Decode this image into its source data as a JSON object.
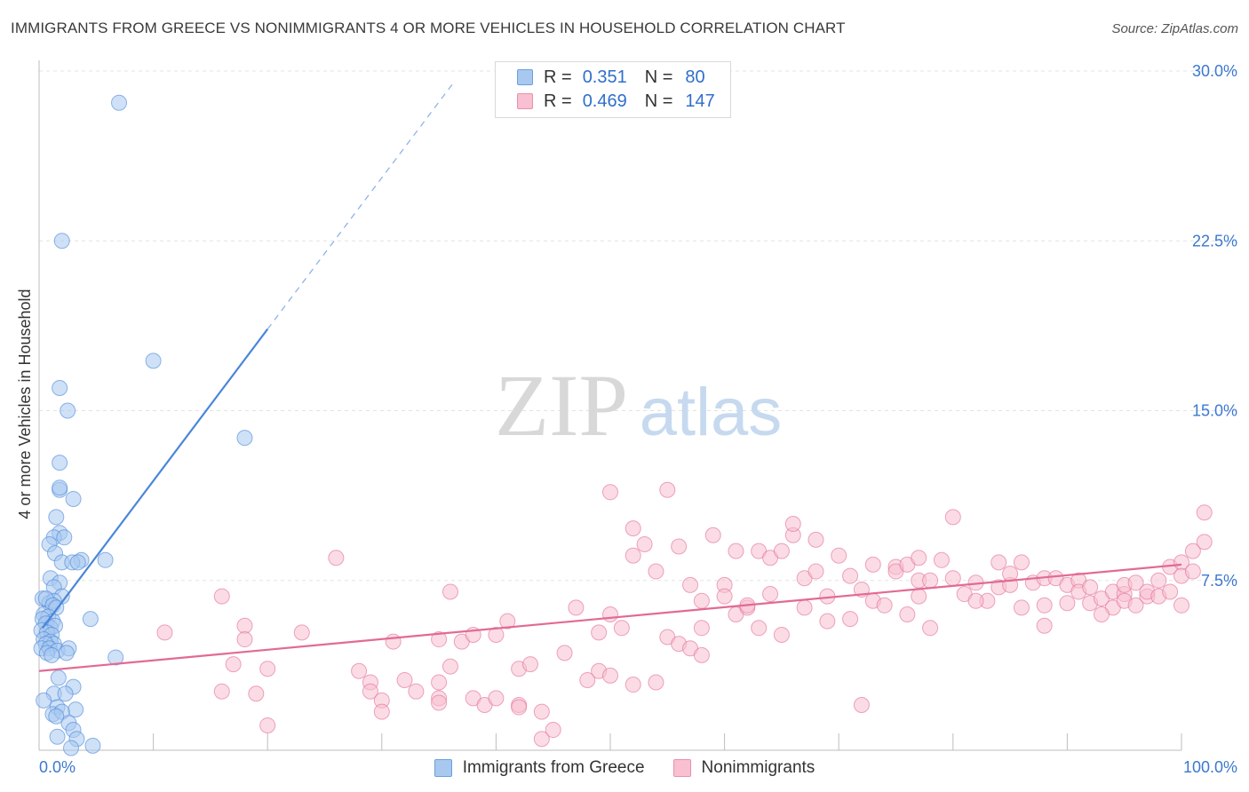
{
  "title": "IMMIGRANTS FROM GREECE VS NONIMMIGRANTS 4 OR MORE VEHICLES IN HOUSEHOLD CORRELATION CHART",
  "source": "Source: ZipAtlas.com",
  "watermark": {
    "zip": "ZIP",
    "atlas": "atlas"
  },
  "legend": {
    "rows": [
      {
        "r_label": "R =",
        "r_value": "0.351",
        "n_label": "N =",
        "n_value": "80",
        "color": "#a8c8f0",
        "border": "#6a9fe0"
      },
      {
        "r_label": "R =",
        "r_value": "0.469",
        "n_label": "N =",
        "n_value": "147",
        "color": "#f8c0d0",
        "border": "#e890aa"
      }
    ]
  },
  "bottom_legend": [
    {
      "label": "Immigrants from Greece",
      "color": "#a8c8f0",
      "border": "#6a9fe0"
    },
    {
      "label": "Nonimmigrants",
      "color": "#f8c0d0",
      "border": "#e890aa"
    }
  ],
  "chart_data": {
    "type": "scatter",
    "title": "IMMIGRANTS FROM GREECE VS NONIMMIGRANTS 4 OR MORE VEHICLES IN HOUSEHOLD CORRELATION CHART",
    "xlabel": "",
    "ylabel": "4 or more Vehicles in Household",
    "xlim": [
      0,
      100
    ],
    "ylim": [
      0,
      30.0
    ],
    "x_tick_labels": [
      "0.0%",
      "100.0%"
    ],
    "y_ticks": [
      7.5,
      15.0,
      22.5,
      30.0
    ],
    "y_tick_labels": [
      "7.5%",
      "15.0%",
      "22.5%",
      "30.0%"
    ],
    "grid": true,
    "series": [
      {
        "name": "Immigrants from Greece",
        "color": "#4a86d8",
        "fill": "#a8c8f0",
        "trend": {
          "x": [
            0.3,
            20.0
          ],
          "y": [
            5.4,
            18.6
          ],
          "ext_x": [
            20.0,
            36.3
          ],
          "ext_y": [
            18.6,
            29.5
          ]
        },
        "points": [
          [
            7,
            28.6
          ],
          [
            2,
            22.5
          ],
          [
            10,
            17.2
          ],
          [
            1.8,
            16.0
          ],
          [
            2.5,
            15.0
          ],
          [
            18,
            13.8
          ],
          [
            1.8,
            12.7
          ],
          [
            1.8,
            11.5
          ],
          [
            1.8,
            11.6
          ],
          [
            3,
            11.1
          ],
          [
            1.5,
            10.3
          ],
          [
            1.8,
            9.6
          ],
          [
            1.3,
            9.4
          ],
          [
            2.2,
            9.4
          ],
          [
            0.9,
            9.1
          ],
          [
            1.4,
            8.7
          ],
          [
            3.7,
            8.4
          ],
          [
            5.8,
            8.4
          ],
          [
            2,
            8.3
          ],
          [
            2.9,
            8.3
          ],
          [
            3.4,
            8.3
          ],
          [
            1,
            7.6
          ],
          [
            1.8,
            7.4
          ],
          [
            1.3,
            7.2
          ],
          [
            2,
            6.8
          ],
          [
            0.3,
            6.7
          ],
          [
            0.9,
            6.5
          ],
          [
            1.3,
            6.6
          ],
          [
            0.6,
            6.7
          ],
          [
            1.2,
            6.4
          ],
          [
            1.5,
            6.3
          ],
          [
            0.4,
            6.0
          ],
          [
            0.8,
            5.9
          ],
          [
            1.2,
            5.7
          ],
          [
            0.3,
            5.8
          ],
          [
            0.6,
            5.6
          ],
          [
            1.0,
            5.4
          ],
          [
            1.4,
            5.5
          ],
          [
            0.2,
            5.3
          ],
          [
            0.7,
            5.2
          ],
          [
            1.1,
            5.1
          ],
          [
            0.4,
            4.9
          ],
          [
            1.0,
            4.8
          ],
          [
            1.3,
            4.7
          ],
          [
            0.6,
            4.7
          ],
          [
            0.2,
            4.5
          ],
          [
            0.9,
            4.5
          ],
          [
            1.6,
            4.4
          ],
          [
            2.6,
            4.5
          ],
          [
            2.4,
            4.3
          ],
          [
            0.7,
            4.3
          ],
          [
            1.1,
            4.2
          ],
          [
            4.5,
            5.8
          ],
          [
            6.7,
            4.1
          ],
          [
            3.0,
            2.8
          ],
          [
            1.7,
            3.2
          ],
          [
            1.3,
            2.5
          ],
          [
            2.3,
            2.5
          ],
          [
            0.4,
            2.2
          ],
          [
            1.6,
            1.9
          ],
          [
            3.2,
            1.8
          ],
          [
            1.2,
            1.6
          ],
          [
            2.0,
            1.7
          ],
          [
            2.6,
            1.2
          ],
          [
            1.5,
            1.5
          ],
          [
            3.0,
            0.9
          ],
          [
            1.6,
            0.6
          ],
          [
            3.3,
            0.5
          ],
          [
            4.7,
            0.2
          ],
          [
            2.8,
            0.1
          ]
        ]
      },
      {
        "name": "Nonimmigrants",
        "color": "#e26a94",
        "fill": "#f8c0d0",
        "trend": {
          "x": [
            0,
            100
          ],
          "y": [
            3.5,
            8.2
          ]
        },
        "points": [
          [
            11,
            5.2
          ],
          [
            16,
            6.8
          ],
          [
            16,
            2.6
          ],
          [
            17,
            3.8
          ],
          [
            18,
            5.5
          ],
          [
            18,
            4.9
          ],
          [
            19,
            2.5
          ],
          [
            20,
            1.1
          ],
          [
            20,
            3.6
          ],
          [
            26,
            8.5
          ],
          [
            23,
            5.2
          ],
          [
            28,
            3.5
          ],
          [
            29,
            3.0
          ],
          [
            29,
            2.6
          ],
          [
            30,
            2.2
          ],
          [
            30,
            1.7
          ],
          [
            31,
            4.8
          ],
          [
            32,
            3.1
          ],
          [
            33,
            2.6
          ],
          [
            35,
            4.9
          ],
          [
            35,
            3.0
          ],
          [
            35,
            2.3
          ],
          [
            35,
            2.1
          ],
          [
            36,
            7.0
          ],
          [
            36,
            3.7
          ],
          [
            37,
            4.8
          ],
          [
            38,
            5.1
          ],
          [
            38,
            2.3
          ],
          [
            39,
            2.0
          ],
          [
            40,
            5.1
          ],
          [
            40,
            2.3
          ],
          [
            41,
            5.7
          ],
          [
            42,
            3.6
          ],
          [
            42,
            2.0
          ],
          [
            42,
            1.9
          ],
          [
            43,
            3.8
          ],
          [
            44,
            1.7
          ],
          [
            44,
            0.5
          ],
          [
            45,
            0.9
          ],
          [
            46,
            4.3
          ],
          [
            47,
            6.3
          ],
          [
            48,
            3.1
          ],
          [
            49,
            3.5
          ],
          [
            49,
            5.2
          ],
          [
            50,
            11.4
          ],
          [
            50,
            6.0
          ],
          [
            50,
            3.3
          ],
          [
            51,
            5.4
          ],
          [
            52,
            8.6
          ],
          [
            52,
            2.9
          ],
          [
            52,
            9.8
          ],
          [
            53,
            9.1
          ],
          [
            54,
            7.9
          ],
          [
            54,
            3.0
          ],
          [
            55,
            11.5
          ],
          [
            55,
            5.0
          ],
          [
            56,
            4.7
          ],
          [
            56,
            9.0
          ],
          [
            57,
            4.5
          ],
          [
            57,
            7.3
          ],
          [
            58,
            6.6
          ],
          [
            58,
            5.4
          ],
          [
            58,
            4.2
          ],
          [
            59,
            9.5
          ],
          [
            60,
            7.3
          ],
          [
            60,
            6.8
          ],
          [
            61,
            6.0
          ],
          [
            61,
            8.8
          ],
          [
            62,
            6.3
          ],
          [
            62,
            6.4
          ],
          [
            63,
            8.8
          ],
          [
            63,
            5.4
          ],
          [
            64,
            6.9
          ],
          [
            64,
            8.5
          ],
          [
            65,
            8.8
          ],
          [
            65,
            5.1
          ],
          [
            66,
            9.5
          ],
          [
            66,
            10.0
          ],
          [
            67,
            7.6
          ],
          [
            67,
            6.3
          ],
          [
            68,
            9.3
          ],
          [
            68,
            7.9
          ],
          [
            69,
            6.8
          ],
          [
            69,
            5.7
          ],
          [
            70,
            8.6
          ],
          [
            71,
            7.7
          ],
          [
            71,
            5.8
          ],
          [
            72,
            7.1
          ],
          [
            72,
            2.0
          ],
          [
            73,
            8.2
          ],
          [
            73,
            6.6
          ],
          [
            74,
            6.4
          ],
          [
            75,
            8.1
          ],
          [
            75,
            7.9
          ],
          [
            76,
            8.2
          ],
          [
            76,
            6.0
          ],
          [
            77,
            7.5
          ],
          [
            77,
            8.5
          ],
          [
            78,
            7.5
          ],
          [
            78,
            5.4
          ],
          [
            79,
            8.4
          ],
          [
            80,
            10.3
          ],
          [
            80,
            7.6
          ],
          [
            81,
            6.9
          ],
          [
            82,
            7.4
          ],
          [
            83,
            6.6
          ],
          [
            84,
            7.2
          ],
          [
            84,
            8.3
          ],
          [
            85,
            7.3
          ],
          [
            85,
            7.8
          ],
          [
            86,
            6.3
          ],
          [
            86,
            8.3
          ],
          [
            87,
            7.4
          ],
          [
            88,
            7.6
          ],
          [
            88,
            5.5
          ],
          [
            89,
            7.6
          ],
          [
            90,
            7.3
          ],
          [
            90,
            6.5
          ],
          [
            91,
            7.5
          ],
          [
            91,
            7.0
          ],
          [
            92,
            7.2
          ],
          [
            92,
            6.5
          ],
          [
            93,
            6.7
          ],
          [
            94,
            6.3
          ],
          [
            94,
            7.0
          ],
          [
            95,
            6.9
          ],
          [
            95,
            7.3
          ],
          [
            95,
            6.6
          ],
          [
            96,
            6.4
          ],
          [
            96,
            7.4
          ],
          [
            97,
            6.8
          ],
          [
            97,
            7.0
          ],
          [
            98,
            6.8
          ],
          [
            98,
            7.5
          ],
          [
            99,
            7.0
          ],
          [
            99,
            8.1
          ],
          [
            100,
            8.3
          ],
          [
            100,
            7.7
          ],
          [
            101,
            7.9
          ],
          [
            101,
            8.8
          ],
          [
            102,
            9.2
          ],
          [
            102,
            10.5
          ],
          [
            100,
            6.4
          ],
          [
            88,
            6.4
          ],
          [
            77,
            6.8
          ],
          [
            82,
            6.6
          ],
          [
            93,
            6.0
          ]
        ]
      }
    ]
  }
}
